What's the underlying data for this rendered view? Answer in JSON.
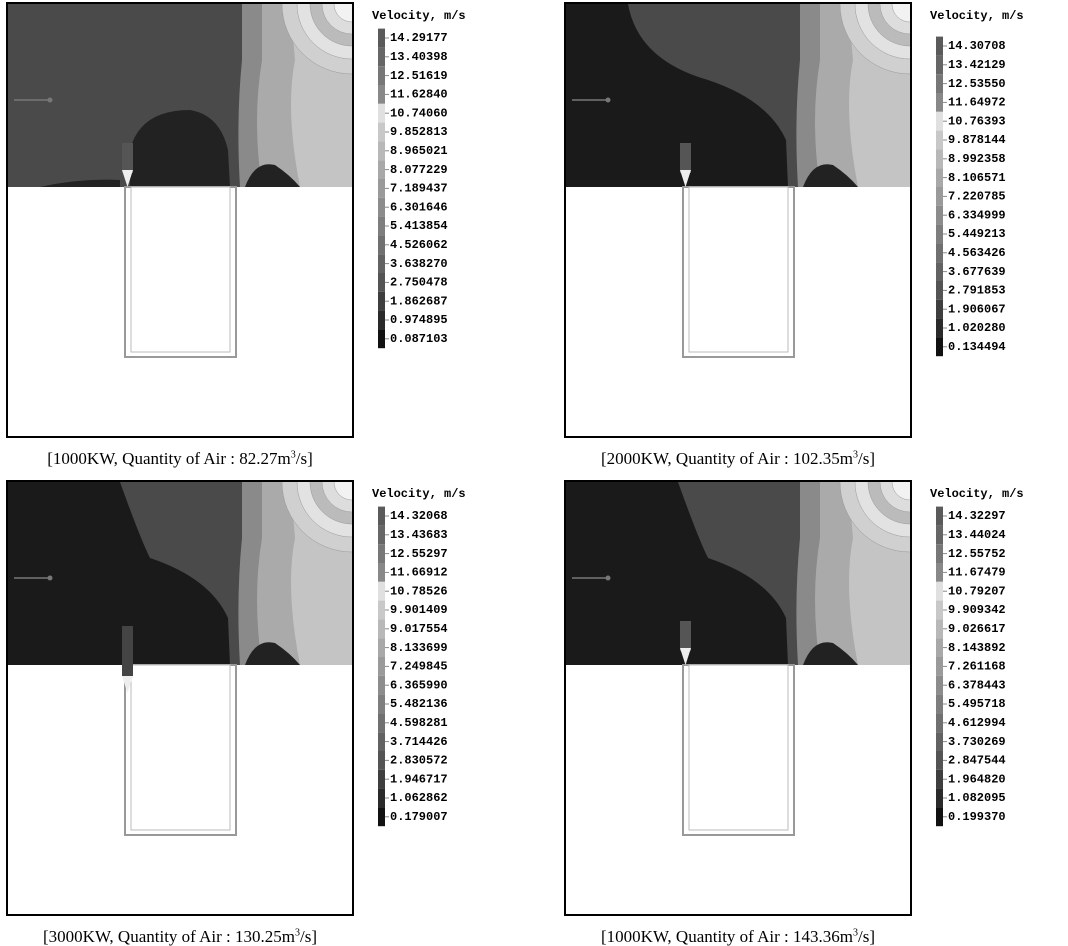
{
  "panels": [
    {
      "legend_title": "Velocity, m/s",
      "legend_labels": [
        "14.29177",
        "13.40398",
        "12.51619",
        "11.62840",
        "10.74060",
        "9.852813",
        "8.965021",
        "8.077229",
        "7.189437",
        "6.301646",
        "5.413854",
        "4.526062",
        "3.638270",
        "2.750478",
        "1.862687",
        "0.974895",
        "0.087103"
      ],
      "caption": {
        "before": "[1000KW, Quantity of Air : 82.27m",
        "sup": "3",
        "after": "/s]"
      }
    },
    {
      "legend_title": "Velocity, m/s",
      "legend_labels": [
        "14.30708",
        "13.42129",
        "12.53550",
        "11.64972",
        "10.76393",
        "9.878144",
        "8.992358",
        "8.106571",
        "7.220785",
        "6.334999",
        "5.449213",
        "4.563426",
        "3.677639",
        "2.791853",
        "1.906067",
        "1.020280",
        "0.134494"
      ],
      "caption": {
        "before": "[2000KW, Quantity of Air : 102.35m",
        "sup": "3",
        "after": "/s]"
      }
    },
    {
      "legend_title": "Velocity, m/s",
      "legend_labels": [
        "14.32068",
        "13.43683",
        "12.55297",
        "11.66912",
        "10.78526",
        "9.901409",
        "9.017554",
        "8.133699",
        "7.249845",
        "6.365990",
        "5.482136",
        "4.598281",
        "3.714426",
        "2.830572",
        "1.946717",
        "1.062862",
        "0.179007"
      ],
      "caption": {
        "before": "[3000KW, Quantity of Air : 130.25m",
        "sup": "3",
        "after": "/s]"
      }
    },
    {
      "legend_title": "Velocity, m/s",
      "legend_labels": [
        "14.32297",
        "13.44024",
        "12.55752",
        "11.67479",
        "10.79207",
        "9.909342",
        "9.026617",
        "8.143892",
        "7.261168",
        "6.378443",
        "5.495718",
        "4.612994",
        "3.730269",
        "2.847544",
        "1.964820",
        "1.082095",
        "0.199370"
      ],
      "caption": {
        "before": "[1000KW, Quantity of Air : 143.36m",
        "sup": "3",
        "after": "/s]"
      }
    }
  ]
}
